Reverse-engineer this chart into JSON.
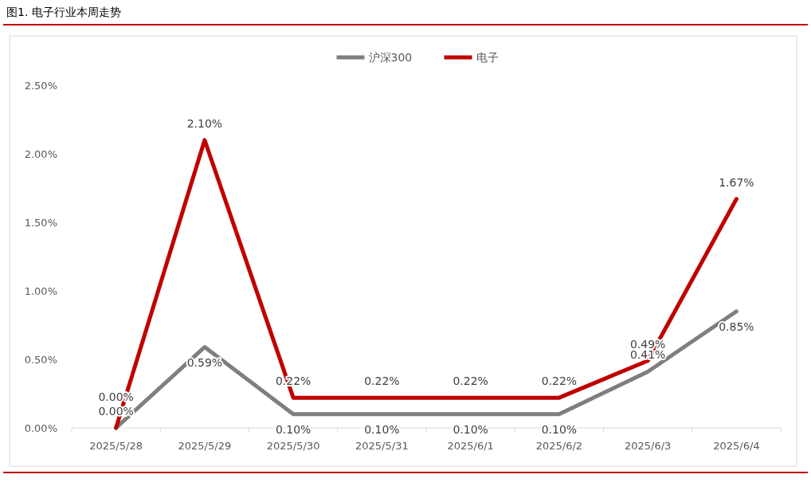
{
  "chart_data": {
    "type": "line",
    "title": "图1. 电子行业本周走势",
    "categories": [
      "2025/5/28",
      "2025/5/29",
      "2025/5/30",
      "2025/5/31",
      "2025/6/1",
      "2025/6/2",
      "2025/6/3",
      "2025/6/4"
    ],
    "series": [
      {
        "name": "沪深300",
        "color": "#7f7f7f",
        "values": [
          0.0,
          0.59,
          0.1,
          0.1,
          0.1,
          0.1,
          0.41,
          0.85
        ],
        "value_labels": [
          "0.00%",
          "0.59%",
          "0.10%",
          "0.10%",
          "0.10%",
          "0.10%",
          "0.41%",
          "0.85%"
        ]
      },
      {
        "name": "电子",
        "color": "#c00000",
        "values": [
          0.0,
          2.1,
          0.22,
          0.22,
          0.22,
          0.22,
          0.49,
          1.67
        ],
        "value_labels": [
          "0.00%",
          "2.10%",
          "0.22%",
          "0.22%",
          "0.22%",
          "0.22%",
          "0.49%",
          "1.67%"
        ]
      }
    ],
    "ylim": [
      0,
      2.5
    ],
    "yticks": [
      {
        "value": 0,
        "label": "0.00%"
      },
      {
        "value": 0.5,
        "label": "0.50%"
      },
      {
        "value": 1,
        "label": "1.00%"
      },
      {
        "value": 1.5,
        "label": "1.50%"
      },
      {
        "value": 2,
        "label": "2.00%"
      },
      {
        "value": 2.5,
        "label": "2.50%"
      }
    ],
    "legend": "top",
    "grid": false,
    "marker": "none",
    "line_style": "solid"
  }
}
